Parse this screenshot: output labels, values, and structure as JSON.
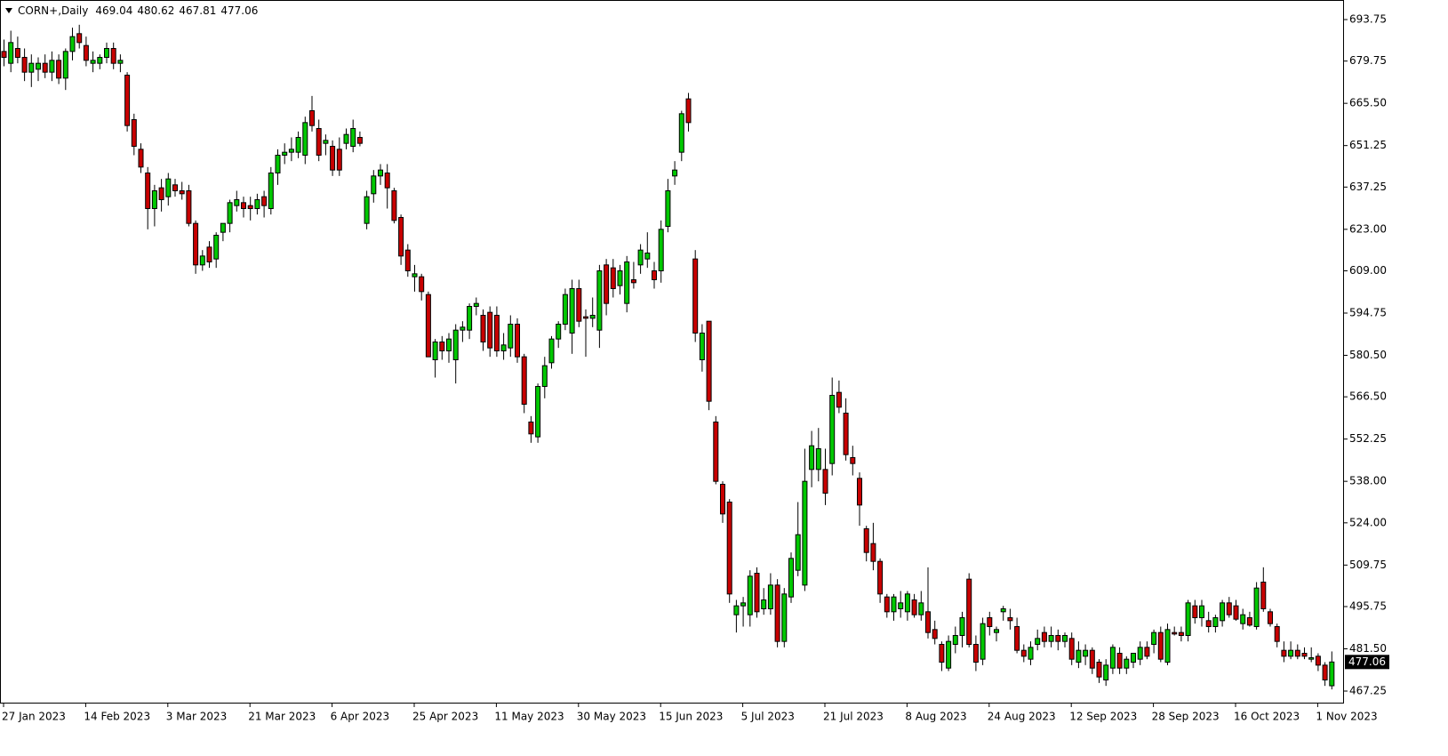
{
  "chart_data": {
    "type": "candlestick",
    "title": "CORN+,Daily",
    "up_color": "#00c800",
    "down_color": "#c80000",
    "grid": false,
    "ylim": [
      463.35,
      700.35
    ],
    "yticks": [
      {
        "value": 693.75,
        "label": "693.75"
      },
      {
        "value": 679.75,
        "label": "679.75"
      },
      {
        "value": 665.5,
        "label": "665.50"
      },
      {
        "value": 651.25,
        "label": "651.25"
      },
      {
        "value": 637.25,
        "label": "637.25"
      },
      {
        "value": 623,
        "label": "623.00"
      },
      {
        "value": 609,
        "label": "609.00"
      },
      {
        "value": 594.75,
        "label": "594.75"
      },
      {
        "value": 580.5,
        "label": "580.50"
      },
      {
        "value": 566.5,
        "label": "566.50"
      },
      {
        "value": 552.25,
        "label": "552.25"
      },
      {
        "value": 538,
        "label": "538.00"
      },
      {
        "value": 524,
        "label": "524.00"
      },
      {
        "value": 509.75,
        "label": "509.75"
      },
      {
        "value": 495.75,
        "label": "495.75"
      },
      {
        "value": 481.5,
        "label": "481.50"
      },
      {
        "value": 467.25,
        "label": "467.25"
      }
    ],
    "categories": [
      "27 Jan 2023",
      null,
      null,
      null,
      null,
      null,
      null,
      null,
      null,
      null,
      null,
      null,
      "14 Feb 2023",
      null,
      null,
      null,
      null,
      null,
      null,
      null,
      null,
      null,
      null,
      null,
      "3 Mar 2023",
      null,
      null,
      null,
      null,
      null,
      null,
      null,
      null,
      null,
      null,
      null,
      "21 Mar 2023",
      null,
      null,
      null,
      null,
      null,
      null,
      null,
      null,
      null,
      null,
      null,
      "6 Apr 2023",
      null,
      null,
      null,
      null,
      null,
      null,
      null,
      null,
      null,
      null,
      null,
      "25 Apr 2023",
      null,
      null,
      null,
      null,
      null,
      null,
      null,
      null,
      null,
      null,
      null,
      "11 May 2023",
      null,
      null,
      null,
      null,
      null,
      null,
      null,
      null,
      null,
      null,
      null,
      "30 May 2023",
      null,
      null,
      null,
      null,
      null,
      null,
      null,
      null,
      null,
      null,
      null,
      "15 Jun 2023",
      null,
      null,
      null,
      null,
      null,
      null,
      null,
      null,
      null,
      null,
      null,
      "5 Jul 2023",
      null,
      null,
      null,
      null,
      null,
      null,
      null,
      null,
      null,
      null,
      null,
      "21 Jul 2023",
      null,
      null,
      null,
      null,
      null,
      null,
      null,
      null,
      null,
      null,
      null,
      "8 Aug 2023",
      null,
      null,
      null,
      null,
      null,
      null,
      null,
      null,
      null,
      null,
      null,
      "24 Aug 2023",
      null,
      null,
      null,
      null,
      null,
      null,
      null,
      null,
      null,
      null,
      null,
      "12 Sep 2023",
      null,
      null,
      null,
      null,
      null,
      null,
      null,
      null,
      null,
      null,
      null,
      "28 Sep 2023",
      null,
      null,
      null,
      null,
      null,
      null,
      null,
      null,
      null,
      null,
      null,
      "16 Oct 2023",
      null,
      null,
      null,
      null,
      null,
      null,
      null,
      null,
      null,
      null,
      null,
      "1 Nov 2023",
      null,
      null
    ],
    "values": [
      [
        683,
        687,
        678,
        681
      ],
      [
        679,
        690,
        676,
        686
      ],
      [
        684,
        688,
        679,
        681
      ],
      [
        681,
        684,
        673,
        676
      ],
      [
        676,
        682,
        671,
        679
      ],
      [
        677,
        681,
        673,
        679
      ],
      [
        679,
        682,
        674,
        676
      ],
      [
        676,
        683,
        673,
        680
      ],
      [
        680,
        682,
        672,
        674
      ],
      [
        674,
        684,
        670,
        683
      ],
      [
        683,
        691,
        680,
        688
      ],
      [
        689,
        692,
        684,
        686
      ],
      [
        685,
        688,
        678,
        680
      ],
      [
        679,
        683,
        676,
        680
      ],
      [
        679,
        682,
        677,
        681
      ],
      [
        681,
        686,
        679,
        684
      ],
      [
        684,
        686,
        677,
        679
      ],
      [
        679,
        682,
        676,
        680
      ],
      [
        675,
        676,
        656,
        658
      ],
      [
        660,
        662,
        648,
        651
      ],
      [
        650,
        652,
        642,
        644
      ],
      [
        642,
        644,
        623,
        630
      ],
      [
        630,
        638,
        624,
        636
      ],
      [
        637,
        640,
        629,
        633
      ],
      [
        634,
        642,
        631,
        640
      ],
      [
        638,
        640,
        634,
        636
      ],
      [
        636,
        639,
        633,
        635
      ],
      [
        636,
        638,
        624,
        625
      ],
      [
        625,
        626,
        608,
        611
      ],
      [
        611,
        616,
        609,
        614
      ],
      [
        617,
        619,
        610,
        612
      ],
      [
        613,
        622,
        610,
        621
      ],
      [
        622,
        625,
        619,
        625
      ],
      [
        625,
        633,
        622,
        632
      ],
      [
        631,
        636,
        629,
        633
      ],
      [
        632,
        634,
        627,
        630
      ],
      [
        631,
        634,
        626,
        630
      ],
      [
        630,
        635,
        628,
        633
      ],
      [
        634,
        636,
        627,
        631
      ],
      [
        630,
        644,
        628,
        642
      ],
      [
        642,
        650,
        638,
        648
      ],
      [
        648,
        652,
        645,
        649
      ],
      [
        649,
        654,
        646,
        650
      ],
      [
        649,
        656,
        647,
        654
      ],
      [
        648,
        661,
        645,
        659
      ],
      [
        663,
        668,
        656,
        658
      ],
      [
        657,
        660,
        646,
        648
      ],
      [
        652,
        655,
        648,
        653
      ],
      [
        651,
        653,
        641,
        643
      ],
      [
        650,
        654,
        641,
        643
      ],
      [
        652,
        657,
        650,
        655
      ],
      [
        651,
        660,
        649,
        657
      ],
      [
        654,
        656,
        651,
        652
      ],
      [
        625,
        636,
        623,
        634
      ],
      [
        635,
        643,
        632,
        641
      ],
      [
        641,
        645,
        638,
        643
      ],
      [
        642,
        645,
        630,
        637
      ],
      [
        636,
        637,
        625,
        626
      ],
      [
        627,
        628,
        611,
        614
      ],
      [
        616,
        618,
        607,
        609
      ],
      [
        607,
        611,
        602,
        608
      ],
      [
        607,
        608,
        599,
        602
      ],
      [
        601,
        602,
        580,
        580
      ],
      [
        579,
        586,
        573,
        585
      ],
      [
        585,
        587,
        579,
        582
      ],
      [
        582,
        588,
        578,
        586
      ],
      [
        579,
        591,
        571,
        589
      ],
      [
        589,
        592,
        585,
        590
      ],
      [
        589,
        598,
        586,
        597
      ],
      [
        597,
        600,
        594,
        598
      ],
      [
        594,
        596,
        582,
        585
      ],
      [
        595,
        597,
        580,
        583
      ],
      [
        594,
        597,
        580,
        582
      ],
      [
        582,
        588,
        579,
        584
      ],
      [
        583,
        594,
        580,
        591
      ],
      [
        591,
        593,
        578,
        580
      ],
      [
        580,
        581,
        561,
        564
      ],
      [
        558,
        560,
        551,
        554
      ],
      [
        553,
        571,
        551,
        570
      ],
      [
        570,
        580,
        566,
        577
      ],
      [
        578,
        587,
        576,
        586
      ],
      [
        586,
        592,
        583,
        591
      ],
      [
        591,
        603,
        589,
        601
      ],
      [
        588,
        606,
        581,
        603
      ],
      [
        603,
        606,
        590,
        592
      ],
      [
        593.5,
        596,
        580,
        593
      ],
      [
        593,
        600,
        590,
        594
      ],
      [
        589,
        611,
        583,
        609
      ],
      [
        611,
        613,
        594,
        598
      ],
      [
        610,
        613,
        600,
        603
      ],
      [
        604,
        611,
        601,
        609
      ],
      [
        598,
        614,
        595,
        612
      ],
      [
        606,
        612,
        603,
        605
      ],
      [
        611,
        618,
        608,
        616
      ],
      [
        613,
        622,
        610,
        615
      ],
      [
        609,
        612,
        603,
        606
      ],
      [
        609,
        626,
        605,
        623
      ],
      [
        624,
        640,
        622,
        636
      ],
      [
        641,
        646,
        638,
        643
      ],
      [
        649,
        663,
        646,
        662
      ],
      [
        667,
        669,
        656,
        659
      ],
      [
        613,
        616,
        585,
        588
      ],
      [
        579,
        591,
        575,
        588
      ],
      [
        592,
        592,
        562,
        565
      ],
      [
        558,
        560,
        537,
        538
      ],
      [
        537,
        538,
        524,
        527
      ],
      [
        531,
        532,
        497,
        500
      ],
      [
        493,
        498,
        487,
        496
      ],
      [
        496,
        499,
        489,
        497
      ],
      [
        493,
        508,
        489,
        506
      ],
      [
        507,
        509,
        492,
        494
      ],
      [
        495,
        502,
        493,
        498
      ],
      [
        495,
        507,
        493,
        503
      ],
      [
        503,
        505,
        482,
        484
      ],
      [
        484,
        502,
        482,
        500
      ],
      [
        499,
        514,
        497,
        512
      ],
      [
        508,
        531,
        506,
        520
      ],
      [
        503,
        549,
        501,
        538
      ],
      [
        542,
        555,
        536,
        550
      ],
      [
        542,
        556,
        538,
        549
      ],
      [
        542,
        549,
        530,
        534
      ],
      [
        544,
        573,
        540,
        567
      ],
      [
        568,
        572,
        561,
        563
      ],
      [
        561,
        566,
        545,
        547
      ],
      [
        546,
        550,
        540,
        544
      ],
      [
        539,
        541,
        523,
        530
      ],
      [
        522,
        523,
        511,
        514
      ],
      [
        517,
        524,
        508,
        511
      ],
      [
        511,
        512,
        497,
        500
      ],
      [
        499,
        500,
        492,
        494
      ],
      [
        494,
        500,
        491,
        499
      ],
      [
        495,
        501,
        492,
        497
      ],
      [
        494,
        501,
        491,
        500
      ],
      [
        498,
        500,
        492,
        493
      ],
      [
        493,
        501,
        491,
        497
      ],
      [
        494,
        509,
        485,
        487
      ],
      [
        488,
        491,
        483,
        485
      ],
      [
        483,
        484,
        474,
        477
      ],
      [
        475,
        486,
        474,
        484
      ],
      [
        483,
        489,
        480,
        486
      ],
      [
        486,
        494,
        482,
        492
      ],
      [
        505,
        507,
        482,
        483
      ],
      [
        483,
        486,
        474,
        477
      ],
      [
        478,
        492,
        476,
        490
      ],
      [
        492,
        494,
        486,
        489
      ],
      [
        487,
        489,
        484,
        488
      ],
      [
        494,
        496,
        491,
        495
      ],
      [
        492,
        495,
        488,
        491
      ],
      [
        489,
        492,
        480,
        481
      ],
      [
        481,
        483,
        477,
        479
      ],
      [
        478,
        484,
        476,
        482
      ],
      [
        483,
        488,
        481,
        485
      ],
      [
        487,
        489,
        482,
        484
      ],
      [
        484,
        489,
        482,
        486
      ],
      [
        486,
        488,
        481,
        484
      ],
      [
        484,
        487,
        482,
        486
      ],
      [
        485,
        487,
        476,
        478
      ],
      [
        477,
        484,
        475,
        481
      ],
      [
        479,
        483,
        476,
        481
      ],
      [
        481,
        482,
        473,
        475
      ],
      [
        477,
        478,
        470,
        472
      ],
      [
        471,
        478,
        469,
        476
      ],
      [
        475,
        483,
        473,
        482
      ],
      [
        480,
        482,
        473,
        475
      ],
      [
        475,
        479,
        473,
        478
      ],
      [
        477,
        480,
        475,
        480
      ],
      [
        478,
        484,
        476,
        482
      ],
      [
        482,
        484,
        478,
        479
      ],
      [
        483,
        488,
        480,
        487
      ],
      [
        487,
        489,
        477,
        478
      ],
      [
        477,
        490,
        476,
        488
      ],
      [
        487,
        489,
        486,
        486.5
      ],
      [
        487,
        489,
        484,
        486
      ],
      [
        486,
        498,
        484,
        497
      ],
      [
        496,
        498,
        490,
        492
      ],
      [
        492,
        498,
        489,
        496
      ],
      [
        491,
        494,
        487,
        489
      ],
      [
        489,
        493,
        487,
        492
      ],
      [
        491,
        498,
        489,
        497
      ],
      [
        497,
        499,
        492,
        493
      ],
      [
        496,
        498,
        491,
        491.5
      ],
      [
        490,
        495,
        488,
        493
      ],
      [
        492,
        494,
        489,
        489.5
      ],
      [
        489,
        504,
        488,
        502
      ],
      [
        504,
        509,
        494,
        495
      ],
      [
        494,
        495,
        489,
        490
      ],
      [
        489,
        490,
        482,
        484
      ],
      [
        481,
        484,
        477,
        479
      ],
      [
        479,
        484,
        478,
        481
      ],
      [
        481,
        483,
        478,
        479
      ],
      [
        480,
        482,
        478,
        479
      ],
      [
        478,
        482,
        477,
        478.5
      ],
      [
        479,
        480,
        474,
        476
      ],
      [
        476,
        477,
        469,
        471
      ],
      [
        469.04,
        480.62,
        467.81,
        477.06
      ]
    ]
  }
}
